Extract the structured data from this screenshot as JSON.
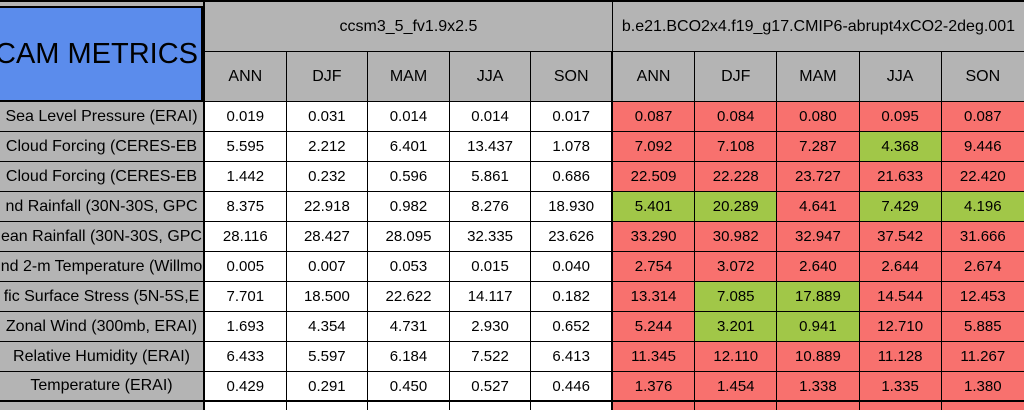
{
  "title": "CAM METRICS",
  "colors": {
    "red": "#f8716e",
    "green": "#a1c748",
    "grey": "#b4b4b4",
    "blue": "#5b8cec",
    "border": "#000000",
    "value_cell_bg": "#ffffff"
  },
  "legend_semantics": {
    "red": "worse",
    "green": "better"
  },
  "groups": [
    {
      "name": "ccsm3_5_fv1.9x2.5",
      "seasons": [
        "ANN",
        "DJF",
        "MAM",
        "JJA",
        "SON"
      ]
    },
    {
      "name": "b.e21.BCO2x4.f19_g17.CMIP6-abrupt4xCO2-2deg.001",
      "seasons": [
        "ANN",
        "DJF",
        "MAM",
        "JJA",
        "SON"
      ]
    }
  ],
  "rows": [
    {
      "label": "Sea Level Pressure (ERAI)",
      "left": [
        "0.019",
        "0.031",
        "0.014",
        "0.014",
        "0.017"
      ],
      "right": [
        {
          "value": "0.087",
          "status": "worse"
        },
        {
          "value": "0.084",
          "status": "worse"
        },
        {
          "value": "0.080",
          "status": "worse"
        },
        {
          "value": "0.095",
          "status": "worse"
        },
        {
          "value": "0.087",
          "status": "worse"
        }
      ]
    },
    {
      "label": "Cloud Forcing (CERES-EB",
      "left": [
        "5.595",
        "2.212",
        "6.401",
        "13.437",
        "1.078"
      ],
      "right": [
        {
          "value": "7.092",
          "status": "worse"
        },
        {
          "value": "7.108",
          "status": "worse"
        },
        {
          "value": "7.287",
          "status": "worse"
        },
        {
          "value": "4.368",
          "status": "better"
        },
        {
          "value": "9.446",
          "status": "worse"
        }
      ]
    },
    {
      "label": "Cloud Forcing (CERES-EB",
      "left": [
        "1.442",
        "0.232",
        "0.596",
        "5.861",
        "0.686"
      ],
      "right": [
        {
          "value": "22.509",
          "status": "worse"
        },
        {
          "value": "22.228",
          "status": "worse"
        },
        {
          "value": "23.727",
          "status": "worse"
        },
        {
          "value": "21.633",
          "status": "worse"
        },
        {
          "value": "22.420",
          "status": "worse"
        }
      ]
    },
    {
      "label": "nd Rainfall (30N-30S, GPC",
      "left": [
        "8.375",
        "22.918",
        "0.982",
        "8.276",
        "18.930"
      ],
      "right": [
        {
          "value": "5.401",
          "status": "better"
        },
        {
          "value": "20.289",
          "status": "better"
        },
        {
          "value": "4.641",
          "status": "worse"
        },
        {
          "value": "7.429",
          "status": "better"
        },
        {
          "value": "4.196",
          "status": "better"
        }
      ]
    },
    {
      "label": "ean Rainfall (30N-30S, GPC",
      "left": [
        "28.116",
        "28.427",
        "28.095",
        "32.335",
        "23.626"
      ],
      "right": [
        {
          "value": "33.290",
          "status": "worse"
        },
        {
          "value": "30.982",
          "status": "worse"
        },
        {
          "value": "32.947",
          "status": "worse"
        },
        {
          "value": "37.542",
          "status": "worse"
        },
        {
          "value": "31.666",
          "status": "worse"
        }
      ]
    },
    {
      "label": "nd 2-m Temperature (Willmo",
      "left": [
        "0.005",
        "0.007",
        "0.053",
        "0.015",
        "0.040"
      ],
      "right": [
        {
          "value": "2.754",
          "status": "worse"
        },
        {
          "value": "3.072",
          "status": "worse"
        },
        {
          "value": "2.640",
          "status": "worse"
        },
        {
          "value": "2.644",
          "status": "worse"
        },
        {
          "value": "2.674",
          "status": "worse"
        }
      ]
    },
    {
      "label": "fic Surface Stress (5N-5S,E",
      "left": [
        "7.701",
        "18.500",
        "22.622",
        "14.117",
        "0.182"
      ],
      "right": [
        {
          "value": "13.314",
          "status": "worse"
        },
        {
          "value": "7.085",
          "status": "better"
        },
        {
          "value": "17.889",
          "status": "better"
        },
        {
          "value": "14.544",
          "status": "worse"
        },
        {
          "value": "12.453",
          "status": "worse"
        }
      ]
    },
    {
      "label": "Zonal Wind (300mb, ERAI)",
      "left": [
        "1.693",
        "4.354",
        "4.731",
        "2.930",
        "0.652"
      ],
      "right": [
        {
          "value": "5.244",
          "status": "worse"
        },
        {
          "value": "3.201",
          "status": "better"
        },
        {
          "value": "0.941",
          "status": "better"
        },
        {
          "value": "12.710",
          "status": "worse"
        },
        {
          "value": "5.885",
          "status": "worse"
        }
      ]
    },
    {
      "label": "Relative Humidity (ERAI)",
      "left": [
        "6.433",
        "5.597",
        "6.184",
        "7.522",
        "6.413"
      ],
      "right": [
        {
          "value": "11.345",
          "status": "worse"
        },
        {
          "value": "12.110",
          "status": "worse"
        },
        {
          "value": "10.889",
          "status": "worse"
        },
        {
          "value": "11.128",
          "status": "worse"
        },
        {
          "value": "11.267",
          "status": "worse"
        }
      ]
    },
    {
      "label": "Temperature (ERAI)",
      "left": [
        "0.429",
        "0.291",
        "0.450",
        "0.527",
        "0.446"
      ],
      "right": [
        {
          "value": "1.376",
          "status": "worse"
        },
        {
          "value": "1.454",
          "status": "worse"
        },
        {
          "value": "1.338",
          "status": "worse"
        },
        {
          "value": "1.335",
          "status": "worse"
        },
        {
          "value": "1.380",
          "status": "worse"
        }
      ]
    }
  ],
  "partial_next_row_visible": true
}
